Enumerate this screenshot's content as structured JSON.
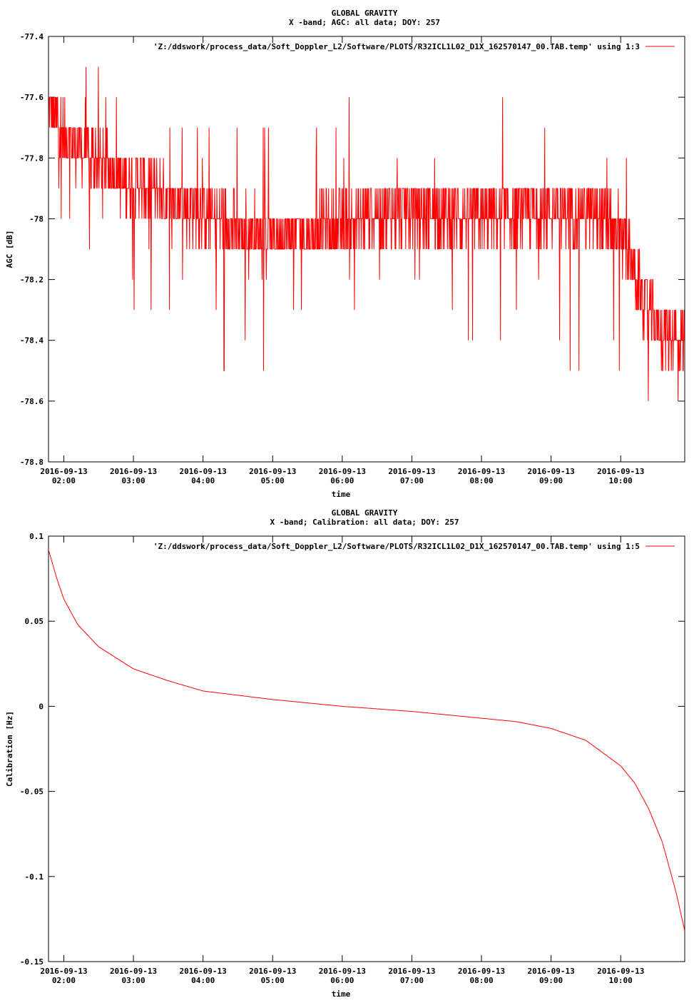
{
  "chart_data": [
    {
      "type": "line",
      "title": "GLOBAL GRAVITY",
      "subtitle": "X -band; AGC: all data; DOY: 257",
      "xlabel": "time",
      "ylabel": "AGC [dB]",
      "legend": "'Z:/ddswork/process_data/Soft_Doppler_L2/Software/PLOTS/R32ICL1L02_D1X_162570147_00.TAB.temp' using 1:3",
      "legend_position": "top-right",
      "color": "#ff0000",
      "grid": false,
      "xlim_hours": [
        1.78,
        10.92
      ],
      "ylim": [
        -78.8,
        -77.4
      ],
      "x_ticks": [
        {
          "value": 2,
          "date": "2016-09-13",
          "time": "02:00"
        },
        {
          "value": 3,
          "date": "2016-09-13",
          "time": "03:00"
        },
        {
          "value": 4,
          "date": "2016-09-13",
          "time": "04:00"
        },
        {
          "value": 5,
          "date": "2016-09-13",
          "time": "05:00"
        },
        {
          "value": 6,
          "date": "2016-09-13",
          "time": "06:00"
        },
        {
          "value": 7,
          "date": "2016-09-13",
          "time": "07:00"
        },
        {
          "value": 8,
          "date": "2016-09-13",
          "time": "08:00"
        },
        {
          "value": 9,
          "date": "2016-09-13",
          "time": "09:00"
        },
        {
          "value": 10,
          "date": "2016-09-13",
          "time": "10:00"
        }
      ],
      "y_ticks": [
        {
          "value": -77.4,
          "label": "-77.4"
        },
        {
          "value": -77.6,
          "label": "-77.6"
        },
        {
          "value": -77.8,
          "label": "-77.8"
        },
        {
          "value": -78,
          "label": "-78"
        },
        {
          "value": -78.2,
          "label": "-78.2"
        },
        {
          "value": -78.4,
          "label": "-78.4"
        },
        {
          "value": -78.6,
          "label": "-78.6"
        },
        {
          "value": -78.8,
          "label": "-78.8"
        }
      ],
      "x": [
        1.8,
        2.0,
        2.5,
        3.0,
        3.5,
        4.0,
        4.5,
        5.0,
        5.5,
        6.0,
        6.5,
        7.0,
        7.5,
        8.0,
        8.5,
        9.0,
        9.5,
        10.0,
        10.3,
        10.6,
        10.9
      ],
      "values": [
        -77.65,
        -77.72,
        -77.82,
        -77.88,
        -77.93,
        -77.98,
        -78.03,
        -78.05,
        -78.05,
        -78.02,
        -77.98,
        -77.97,
        -77.98,
        -78.0,
        -77.98,
        -77.97,
        -77.98,
        -78.05,
        -78.25,
        -78.38,
        -78.4
      ],
      "noise_band_db": 0.1
    },
    {
      "type": "line",
      "title": "GLOBAL GRAVITY",
      "subtitle": "X -band; Calibration: all data; DOY: 257",
      "xlabel": "time",
      "ylabel": "Calibration [Hz]",
      "legend": "'Z:/ddswork/process_data/Soft_Doppler_L2/Software/PLOTS/R32ICL1L02_D1X_162570147_00.TAB.temp' using 1:5",
      "legend_position": "top-right",
      "color": "#ff0000",
      "grid": false,
      "xlim_hours": [
        1.78,
        10.92
      ],
      "ylim": [
        -0.15,
        0.1
      ],
      "x_ticks": [
        {
          "value": 2,
          "date": "2016-09-13",
          "time": "02:00"
        },
        {
          "value": 3,
          "date": "2016-09-13",
          "time": "03:00"
        },
        {
          "value": 4,
          "date": "2016-09-13",
          "time": "04:00"
        },
        {
          "value": 5,
          "date": "2016-09-13",
          "time": "05:00"
        },
        {
          "value": 6,
          "date": "2016-09-13",
          "time": "06:00"
        },
        {
          "value": 7,
          "date": "2016-09-13",
          "time": "07:00"
        },
        {
          "value": 8,
          "date": "2016-09-13",
          "time": "08:00"
        },
        {
          "value": 9,
          "date": "2016-09-13",
          "time": "09:00"
        },
        {
          "value": 10,
          "date": "2016-09-13",
          "time": "10:00"
        }
      ],
      "y_ticks": [
        {
          "value": 0.1,
          "label": "0.1"
        },
        {
          "value": 0.05,
          "label": "0.05"
        },
        {
          "value": 0,
          "label": "0"
        },
        {
          "value": -0.05,
          "label": "-0.05"
        },
        {
          "value": -0.1,
          "label": "-0.1"
        },
        {
          "value": -0.15,
          "label": "-0.15"
        }
      ],
      "x": [
        1.78,
        1.9,
        2.0,
        2.2,
        2.5,
        3.0,
        3.5,
        4.0,
        5.0,
        6.0,
        7.0,
        8.0,
        8.5,
        9.0,
        9.5,
        10.0,
        10.2,
        10.4,
        10.6,
        10.8,
        10.92
      ],
      "values": [
        0.092,
        0.075,
        0.063,
        0.048,
        0.035,
        0.022,
        0.015,
        0.009,
        0.004,
        0.0,
        -0.003,
        -0.007,
        -0.009,
        -0.013,
        -0.02,
        -0.035,
        -0.045,
        -0.06,
        -0.08,
        -0.11,
        -0.132
      ]
    }
  ]
}
